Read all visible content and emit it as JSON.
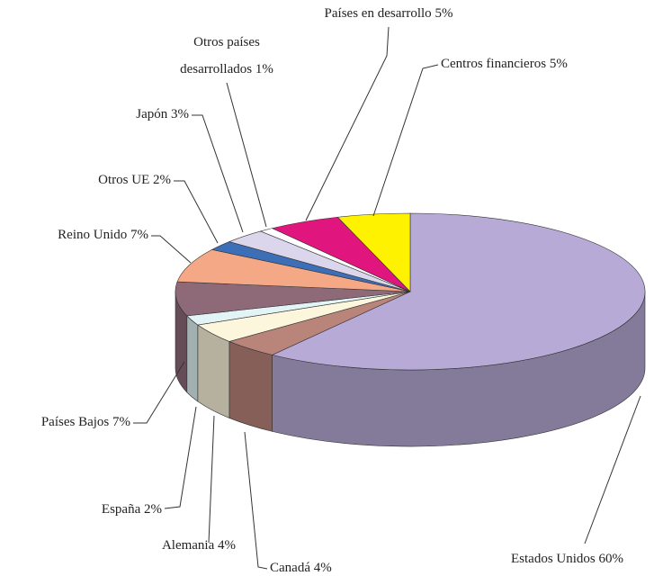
{
  "chart_data": {
    "type": "pie3d",
    "categories": [
      "Estados Unidos",
      "Canadá",
      "Alemania",
      "España",
      "Países Bajos",
      "Reino Unido",
      "Otros UE",
      "Japón",
      "Otros países desarrollados",
      "Países en desarrollo",
      "Centros financieros"
    ],
    "values": [
      60,
      4,
      4,
      2,
      7,
      7,
      2,
      3,
      1,
      5,
      5
    ],
    "value_labels": [
      "60%",
      "4%",
      "4%",
      "2%",
      "7%",
      "7%",
      "2%",
      "3%",
      "1%",
      "5%",
      "5%"
    ],
    "colors": [
      "#b7aad6",
      "#b9847a",
      "#fcf6dc",
      "#e2f4f6",
      "#8e6a78",
      "#f4a886",
      "#3d6fb8",
      "#dcd6ec",
      "#ffffff",
      "#e0157e",
      "#fff200"
    ]
  }
}
